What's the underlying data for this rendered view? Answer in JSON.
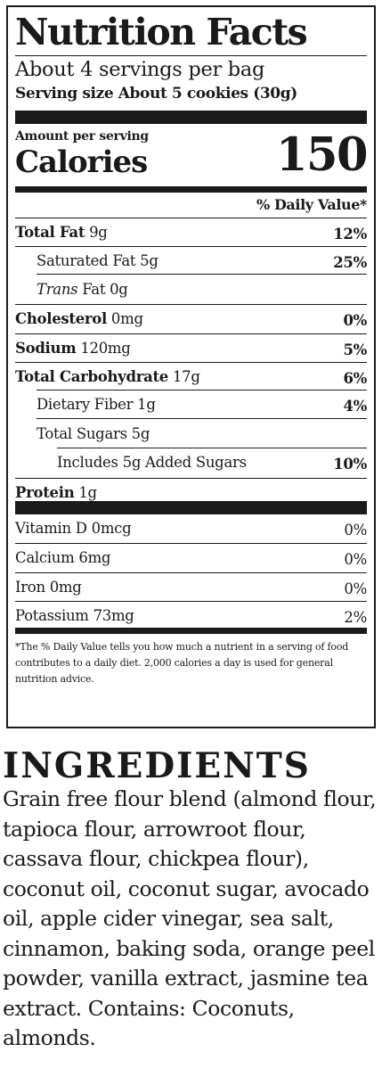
{
  "nutrition": {
    "title": "Nutrition Facts",
    "servings_per_container": "About 4 servings per bag",
    "serving_size": "Serving size About 5 cookies (30g)",
    "amount_per_serving": "Amount per serving",
    "calories_label": "Calories",
    "calories_value": "150",
    "daily_value_header": "% Daily Value*",
    "nutrients": [
      {
        "name": "Total Fat",
        "amount": " 9g",
        "dv": "12%"
      },
      {
        "name": "Saturated Fat 5g",
        "dv": "25%"
      },
      {
        "name_italic": "Trans",
        "name_rest": " Fat 0g"
      },
      {
        "name": "Cholesterol",
        "amount": " 0mg",
        "dv": "0%"
      },
      {
        "name": "Sodium",
        "amount": " 120mg",
        "dv": "5%"
      },
      {
        "name": "Total Carbohydrate",
        "amount": " 17g",
        "dv": "6%"
      },
      {
        "name": "Dietary Fiber 1g",
        "dv": "4%"
      },
      {
        "name": "Total Sugars 5g"
      },
      {
        "name": "Includes 5g Added Sugars",
        "dv": "10%"
      },
      {
        "name": "Protein",
        "amount": " 1g"
      }
    ],
    "vitamins": [
      {
        "name": "Vitamin D 0mcg",
        "dv": "0%"
      },
      {
        "name": "Calcium 6mg",
        "dv": "0%"
      },
      {
        "name": "Iron 0mg",
        "dv": "0%"
      },
      {
        "name": "Potassium 73mg",
        "dv": "2%"
      }
    ],
    "footnote": "*The % Daily Value tells you how much a nutrient in a serving of food contributes to a daily diet. 2,000 calories a day is used for general nutrition advice."
  },
  "ingredients": {
    "title": "INGREDIENTS",
    "text": "Grain free flour blend (almond flour, tapioca flour, arrowroot flour, cassava flour, chickpea flour), coconut oil, coconut sugar, avocado oil, apple cider vinegar, sea salt, cinnamon, baking soda, orange peel powder, vanilla extract, jasmine tea extract. Contains: Coconuts, almonds."
  }
}
